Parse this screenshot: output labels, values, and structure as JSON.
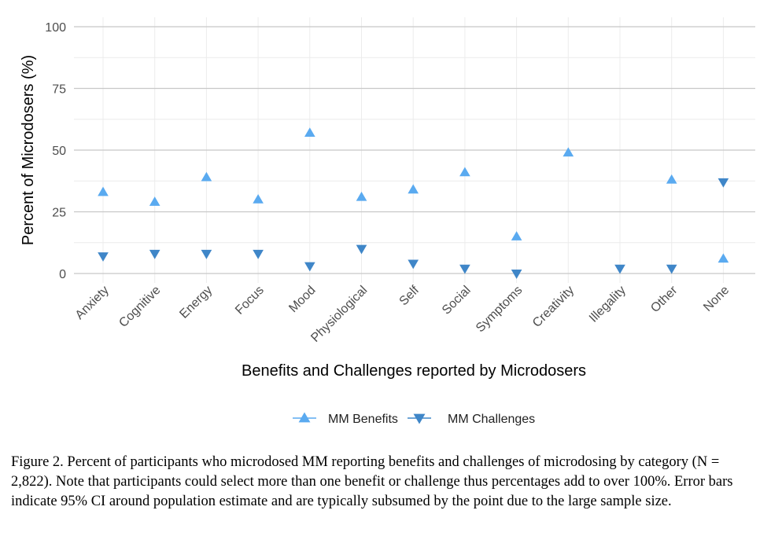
{
  "chart_data": {
    "type": "scatter",
    "categories": [
      "Anxiety",
      "Cognitive",
      "Energy",
      "Focus",
      "Mood",
      "Physiological",
      "Self",
      "Social",
      "Symptoms",
      "Creativity",
      "Illegality",
      "Other",
      "None"
    ],
    "series": [
      {
        "name": "MM Benefits",
        "marker": "triangle-up",
        "color": "#5aaaf0",
        "values": [
          33,
          29,
          39,
          30,
          57,
          31,
          34,
          41,
          15,
          49,
          null,
          38,
          6
        ]
      },
      {
        "name": "MM Challenges",
        "marker": "triangle-down",
        "color": "#3f86c8",
        "values": [
          7,
          8,
          8,
          8,
          3,
          10,
          4,
          2,
          0,
          null,
          2,
          2,
          37
        ]
      }
    ],
    "ylim": [
      0,
      100
    ],
    "yticks": [
      0,
      25,
      50,
      75,
      100
    ],
    "xlabel": "Benefits and Challenges reported by Microdosers",
    "ylabel": "Percent of Microdosers (%)",
    "grid": true,
    "legend_position": "bottom"
  },
  "caption": "Figure 2. Percent of participants who microdosed MM reporting benefits and challenges of microdosing by category (N = 2,822). Note that participants could select more than one benefit or challenge thus percentages add to over 100%. Error bars indicate 95% CI around population estimate and are typically subsumed by the point due to the large sample size."
}
